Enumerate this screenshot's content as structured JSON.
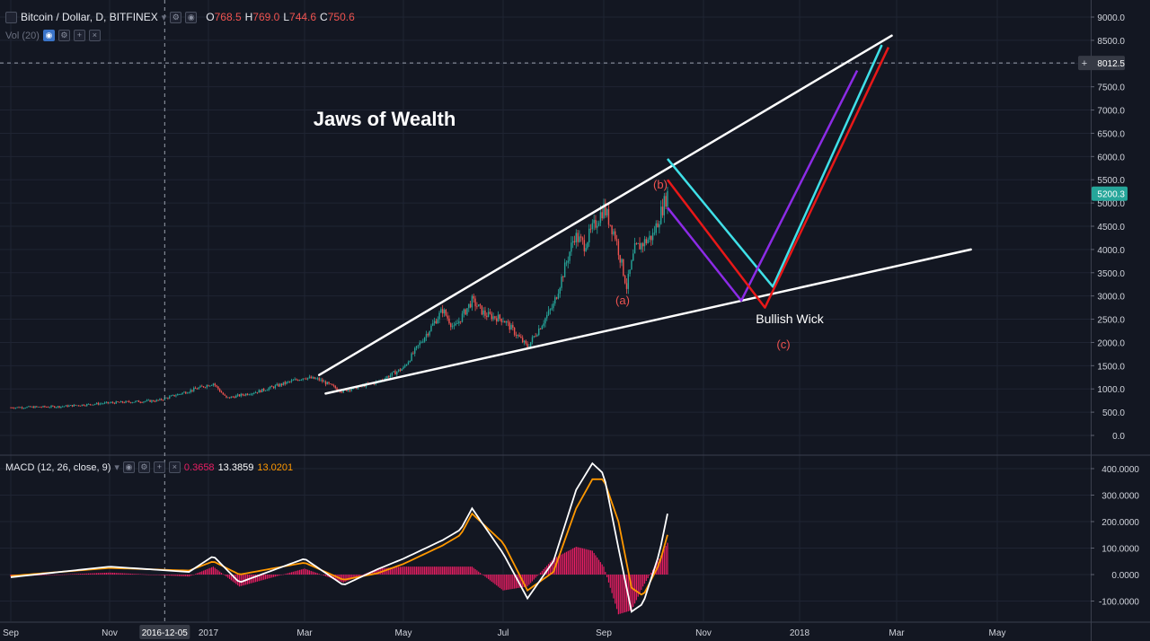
{
  "header": {
    "symbol": "Bitcoin / Dollar, D, BITFINEX",
    "o_label": "O",
    "o_value": "768.5",
    "h_label": "H",
    "h_value": "769.0",
    "l_label": "L",
    "l_value": "744.6",
    "c_label": "C",
    "c_value": "750.6",
    "vol_label": "Vol (20)"
  },
  "macd_header": {
    "label": "MACD (12, 26, close, 9)",
    "hist_value": "0.3658",
    "macd_value": "13.3859",
    "signal_value": "13.0201"
  },
  "colors": {
    "background": "#131722",
    "up": "#26a69a",
    "down": "#ef5350",
    "channel": "#ffffff",
    "cyan": "#3fe0e8",
    "purple": "#8c2be6",
    "red": "#e81818",
    "macd": "#ffffff",
    "signal": "#ff9800",
    "histogram": "#e91e63",
    "price_label_bg": "#26a69a",
    "crosshair_label_bg": "#363a45"
  },
  "chart_data": [
    {
      "type": "candlestick",
      "title": "Bitcoin / Dollar, D, BITFINEX",
      "y_ticks": [
        "9000.0",
        "8500.0",
        "8000.0",
        "7500.0",
        "7000.0",
        "6500.0",
        "6000.0",
        "5500.0",
        "5000.0",
        "4500.0",
        "4000.0",
        "3500.0",
        "3000.0",
        "2500.0",
        "2000.0",
        "1500.0",
        "1000.0",
        "500.0",
        "0.0"
      ],
      "ylim": [
        0,
        9000
      ],
      "x_ticks": [
        "Sep",
        "Nov",
        "2016-12-05",
        "2017",
        "Mar",
        "May",
        "Jul",
        "Sep",
        "Nov",
        "2018",
        "Mar",
        "May"
      ],
      "crosshair_date": "2016-12-05",
      "crosshair_price": "8012.5",
      "last_price": "5200.3",
      "price_path": {
        "dates": [
          "2016-09-01",
          "2016-10-01",
          "2016-11-01",
          "2016-12-01",
          "2017-01-04",
          "2017-01-12",
          "2017-02-01",
          "2017-03-01",
          "2017-03-10",
          "2017-03-24",
          "2017-04-15",
          "2017-05-01",
          "2017-05-25",
          "2017-06-01",
          "2017-06-12",
          "2017-06-20",
          "2017-07-01",
          "2017-07-16",
          "2017-08-01",
          "2017-08-14",
          "2017-08-20",
          "2017-09-01",
          "2017-09-08",
          "2017-09-15",
          "2017-09-20",
          "2017-10-01",
          "2017-10-10"
        ],
        "values": [
          600,
          620,
          700,
          750,
          1120,
          800,
          950,
          1250,
          1200,
          950,
          1150,
          1450,
          2700,
          2300,
          2900,
          2600,
          2500,
          1900,
          2800,
          4300,
          4100,
          4900,
          4300,
          3200,
          4000,
          4300,
          5200
        ]
      },
      "annotations": {
        "title": "Jaws of Wealth",
        "labels": [
          "(a)",
          "(b)",
          "(c)",
          "Bullish Wick"
        ],
        "channel_upper": [
          [
            "2017-03-10",
            1300
          ],
          [
            "2018-02-26",
            8600
          ]
        ],
        "channel_lower": [
          [
            "2017-03-14",
            900
          ],
          [
            "2018-04-15",
            4000
          ]
        ],
        "cyan_path": [
          [
            "2017-10-10",
            5950
          ],
          [
            "2017-12-15",
            3200
          ],
          [
            "2018-02-20",
            8400
          ]
        ],
        "purple_path": [
          [
            "2017-10-10",
            4900
          ],
          [
            "2017-11-25",
            2900
          ],
          [
            "2018-02-05",
            7850
          ]
        ],
        "red_path": [
          [
            "2017-10-10",
            5500
          ],
          [
            "2017-12-10",
            2750
          ],
          [
            "2018-02-24",
            8350
          ]
        ]
      }
    },
    {
      "type": "line",
      "title": "MACD (12, 26, close, 9)",
      "y_ticks": [
        "400.0000",
        "300.0000",
        "200.0000",
        "100.0000",
        "0.0000",
        "-100.0000"
      ],
      "ylim": [
        -150,
        420
      ],
      "series": [
        {
          "name": "MACD",
          "dates": [
            "2016-09-01",
            "2016-11-01",
            "2016-12-20",
            "2017-01-04",
            "2017-01-20",
            "2017-03-01",
            "2017-03-25",
            "2017-04-15",
            "2017-05-01",
            "2017-05-25",
            "2017-06-05",
            "2017-06-12",
            "2017-07-01",
            "2017-07-16",
            "2017-08-01",
            "2017-08-15",
            "2017-08-25",
            "2017-09-01",
            "2017-09-10",
            "2017-09-18",
            "2017-09-25",
            "2017-10-05",
            "2017-10-10"
          ],
          "values": [
            -10,
            30,
            10,
            70,
            -30,
            60,
            -40,
            20,
            60,
            130,
            170,
            250,
            80,
            -90,
            50,
            320,
            420,
            380,
            100,
            -140,
            -110,
            80,
            230
          ]
        },
        {
          "name": "Signal",
          "dates": [
            "2016-09-01",
            "2016-11-01",
            "2016-12-20",
            "2017-01-04",
            "2017-01-20",
            "2017-03-01",
            "2017-03-25",
            "2017-04-15",
            "2017-05-01",
            "2017-05-25",
            "2017-06-05",
            "2017-06-12",
            "2017-07-01",
            "2017-07-16",
            "2017-08-01",
            "2017-08-15",
            "2017-08-25",
            "2017-09-01",
            "2017-09-10",
            "2017-09-18",
            "2017-09-25",
            "2017-10-05",
            "2017-10-10"
          ],
          "values": [
            -5,
            25,
            15,
            50,
            0,
            45,
            -20,
            5,
            40,
            110,
            150,
            230,
            120,
            -60,
            10,
            250,
            360,
            360,
            200,
            -50,
            -80,
            40,
            150
          ]
        }
      ]
    }
  ]
}
